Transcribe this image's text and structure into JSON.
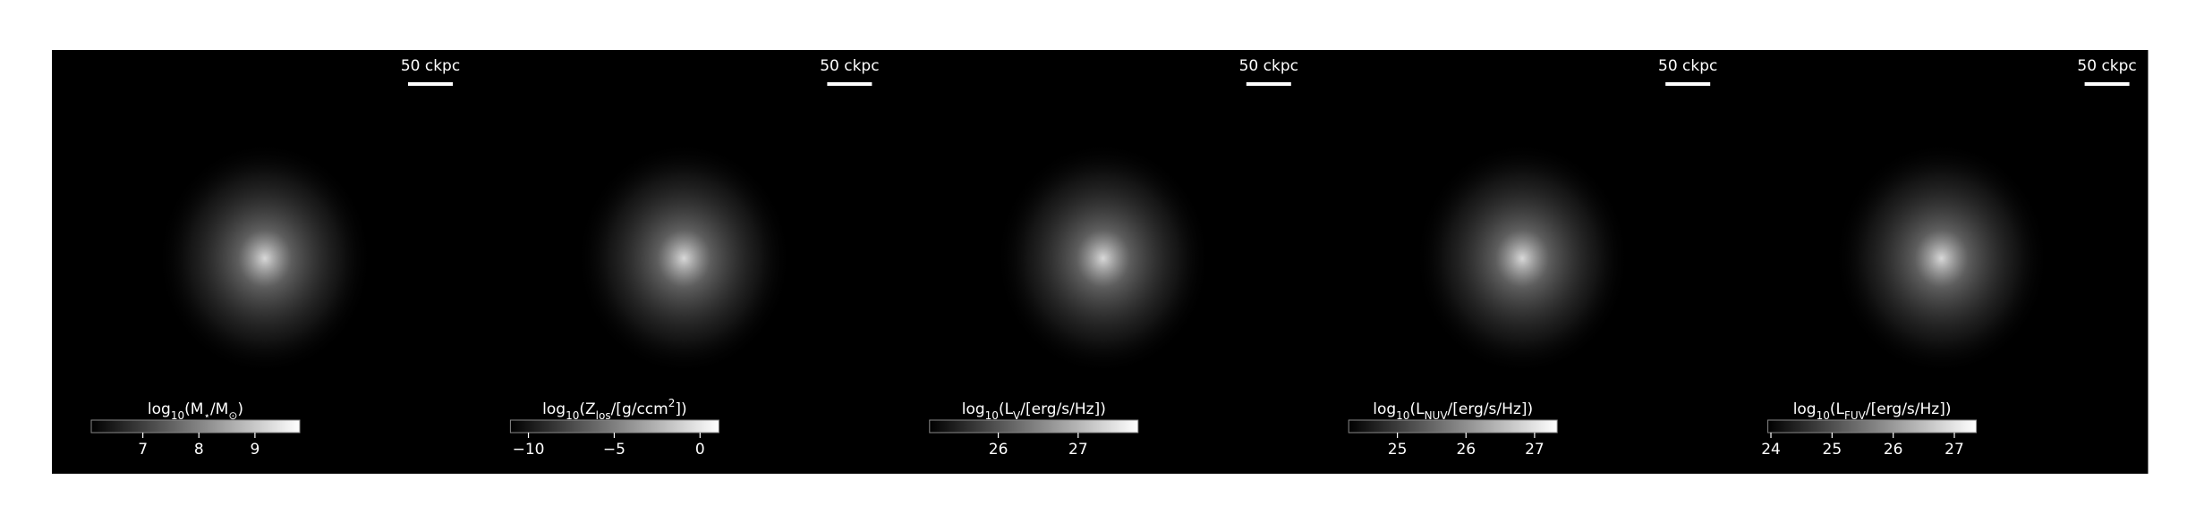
{
  "chart_data": [
    {
      "type": "image",
      "scale_label": "50 ckpc",
      "colorbar_label": [
        {
          "text": "log"
        },
        {
          "text": "10",
          "sub": true
        },
        {
          "text": "(M"
        },
        {
          "text": "⋆",
          "sub": true
        },
        {
          "text": "/M"
        },
        {
          "text": "⊙",
          "sub": true
        },
        {
          "text": ")"
        }
      ],
      "clim": [
        6.08,
        9.8
      ],
      "cticks": [
        7,
        8,
        9
      ]
    },
    {
      "type": "image",
      "scale_label": "50 ckpc",
      "colorbar_label": [
        {
          "text": "log"
        },
        {
          "text": "10",
          "sub": true
        },
        {
          "text": "(Z"
        },
        {
          "text": "los",
          "sub": true
        },
        {
          "text": "/[g/ccm"
        },
        {
          "text": "2",
          "sup": true
        },
        {
          "text": "])"
        }
      ],
      "clim": [
        -11.05,
        1.1
      ],
      "cticks": [
        {
          "value": -10,
          "label": "−10"
        },
        {
          "value": -5,
          "label": "−5"
        },
        0
      ]
    },
    {
      "type": "image",
      "scale_label": "50 ckpc",
      "colorbar_label": [
        {
          "text": "log"
        },
        {
          "text": "10",
          "sub": true
        },
        {
          "text": "(L"
        },
        {
          "text": "V",
          "sub": true
        },
        {
          "text": "/[erg/s/Hz])"
        }
      ],
      "clim": [
        25.14,
        27.75
      ],
      "cticks": [
        26,
        27
      ]
    },
    {
      "type": "image",
      "scale_label": "50 ckpc",
      "colorbar_label": [
        {
          "text": "log"
        },
        {
          "text": "10",
          "sub": true
        },
        {
          "text": "(L"
        },
        {
          "text": "NUV",
          "sub": true
        },
        {
          "text": "/[erg/s/Hz])"
        }
      ],
      "clim": [
        24.29,
        27.33
      ],
      "cticks": [
        25,
        26,
        27
      ]
    },
    {
      "type": "image",
      "scale_label": "50 ckpc",
      "colorbar_label": [
        {
          "text": "log"
        },
        {
          "text": "10",
          "sub": true
        },
        {
          "text": "(L"
        },
        {
          "text": "FUV",
          "sub": true
        },
        {
          "text": "/[erg/s/Hz])"
        }
      ],
      "clim": [
        23.95,
        27.36
      ],
      "cticks": [
        24,
        25,
        26,
        27
      ]
    }
  ]
}
